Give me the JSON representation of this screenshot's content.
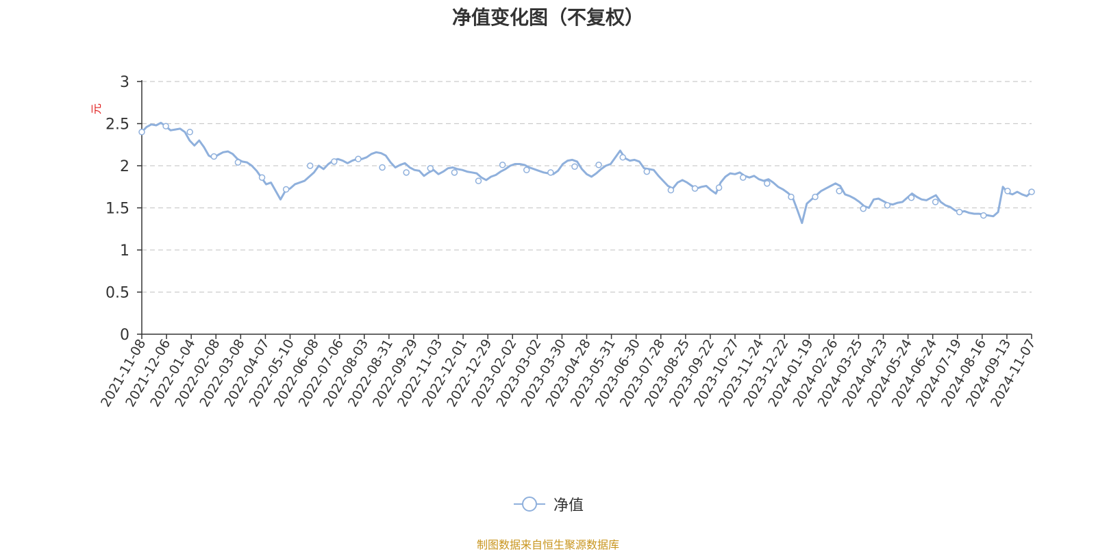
{
  "title": "净值变化图（不复权）",
  "source_text": "制图数据来自恒生聚源数据库",
  "colors": {
    "line": "#8fb0dc",
    "axis": "#333333",
    "grid": "#cccccc",
    "ylabel": "#e02020",
    "source": "#c8951e"
  },
  "legend_icon": "circle-line-icon",
  "chart_data": {
    "type": "line",
    "title": "净值变化图（不复权）",
    "ylabel": "元",
    "xlabel": "",
    "ylim": [
      0,
      3
    ],
    "yticks": [
      "0",
      "0.5",
      "1",
      "1.5",
      "2",
      "2.5",
      "3"
    ],
    "grid": true,
    "legend_position": "bottom-center",
    "x_tick_labels": [
      "2021-11-08",
      "2021-12-06",
      "2022-01-04",
      "2022-02-08",
      "2022-03-08",
      "2022-04-07",
      "2022-05-10",
      "2022-06-08",
      "2022-07-06",
      "2022-08-03",
      "2022-08-31",
      "2022-09-29",
      "2022-11-03",
      "2022-12-01",
      "2022-12-29",
      "2023-02-02",
      "2023-03-02",
      "2023-03-30",
      "2023-04-28",
      "2023-05-31",
      "2023-06-30",
      "2023-07-28",
      "2023-08-25",
      "2023-09-22",
      "2023-10-27",
      "2023-11-24",
      "2023-12-22",
      "2024-01-19",
      "2024-02-26",
      "2024-03-25",
      "2024-04-23",
      "2024-05-24",
      "2024-06-24",
      "2024-07-19",
      "2024-08-16",
      "2024-09-13",
      "2024-11-07"
    ],
    "series": [
      {
        "name": "净值",
        "values": [
          2.4,
          2.46,
          2.49,
          2.48,
          2.51,
          2.47,
          2.42,
          2.43,
          2.44,
          2.4,
          2.3,
          2.24,
          2.3,
          2.22,
          2.12,
          2.09,
          2.13,
          2.16,
          2.17,
          2.14,
          2.08,
          2.05,
          2.04,
          2.0,
          1.94,
          1.86,
          1.78,
          1.8,
          1.7,
          1.6,
          1.7,
          1.73,
          1.78,
          1.8,
          1.82,
          1.87,
          1.92,
          2.0,
          1.96,
          2.02,
          2.06,
          2.08,
          2.06,
          2.03,
          2.06,
          2.08,
          2.08,
          2.1,
          2.14,
          2.16,
          2.15,
          2.12,
          2.04,
          1.98,
          2.01,
          2.03,
          1.98,
          1.95,
          1.94,
          1.88,
          1.92,
          1.95,
          1.9,
          1.93,
          1.97,
          1.98,
          1.96,
          1.95,
          1.93,
          1.92,
          1.91,
          1.86,
          1.83,
          1.87,
          1.89,
          1.93,
          1.96,
          2.0,
          2.02,
          2.02,
          2.01,
          1.98,
          1.96,
          1.94,
          1.92,
          1.91,
          1.9,
          1.94,
          2.02,
          2.06,
          2.07,
          2.05,
          1.96,
          1.9,
          1.87,
          1.91,
          1.96,
          2.0,
          2.02,
          2.1,
          2.18,
          2.09,
          2.06,
          2.07,
          2.05,
          1.97,
          1.96,
          1.95,
          1.88,
          1.82,
          1.76,
          1.73,
          1.8,
          1.83,
          1.8,
          1.76,
          1.73,
          1.75,
          1.76,
          1.71,
          1.67,
          1.8,
          1.87,
          1.91,
          1.9,
          1.92,
          1.88,
          1.86,
          1.88,
          1.84,
          1.82,
          1.84,
          1.8,
          1.75,
          1.72,
          1.68,
          1.63,
          1.48,
          1.32,
          1.55,
          1.6,
          1.65,
          1.7,
          1.73,
          1.76,
          1.79,
          1.76,
          1.66,
          1.64,
          1.61,
          1.57,
          1.52,
          1.5,
          1.6,
          1.61,
          1.58,
          1.55,
          1.54,
          1.56,
          1.57,
          1.62,
          1.67,
          1.63,
          1.6,
          1.59,
          1.62,
          1.65,
          1.57,
          1.53,
          1.51,
          1.47,
          1.45,
          1.46,
          1.44,
          1.43,
          1.43,
          1.42,
          1.41,
          1.4,
          1.45,
          1.75,
          1.68,
          1.66,
          1.69,
          1.66,
          1.64,
          1.69
        ]
      }
    ],
    "marker_values": [
      2.4,
      2.47,
      2.4,
      2.11,
      2.04,
      1.86,
      1.72,
      2.0,
      2.05,
      2.08,
      1.98,
      1.92,
      1.97,
      1.92,
      1.82,
      2.01,
      1.95,
      1.92,
      1.99,
      2.01,
      2.1,
      1.93,
      1.71,
      1.73,
      1.74,
      1.86,
      1.79,
      1.63,
      1.63,
      1.7,
      1.49,
      1.53,
      1.62,
      1.57,
      1.45,
      1.41,
      1.7,
      1.69
    ]
  }
}
